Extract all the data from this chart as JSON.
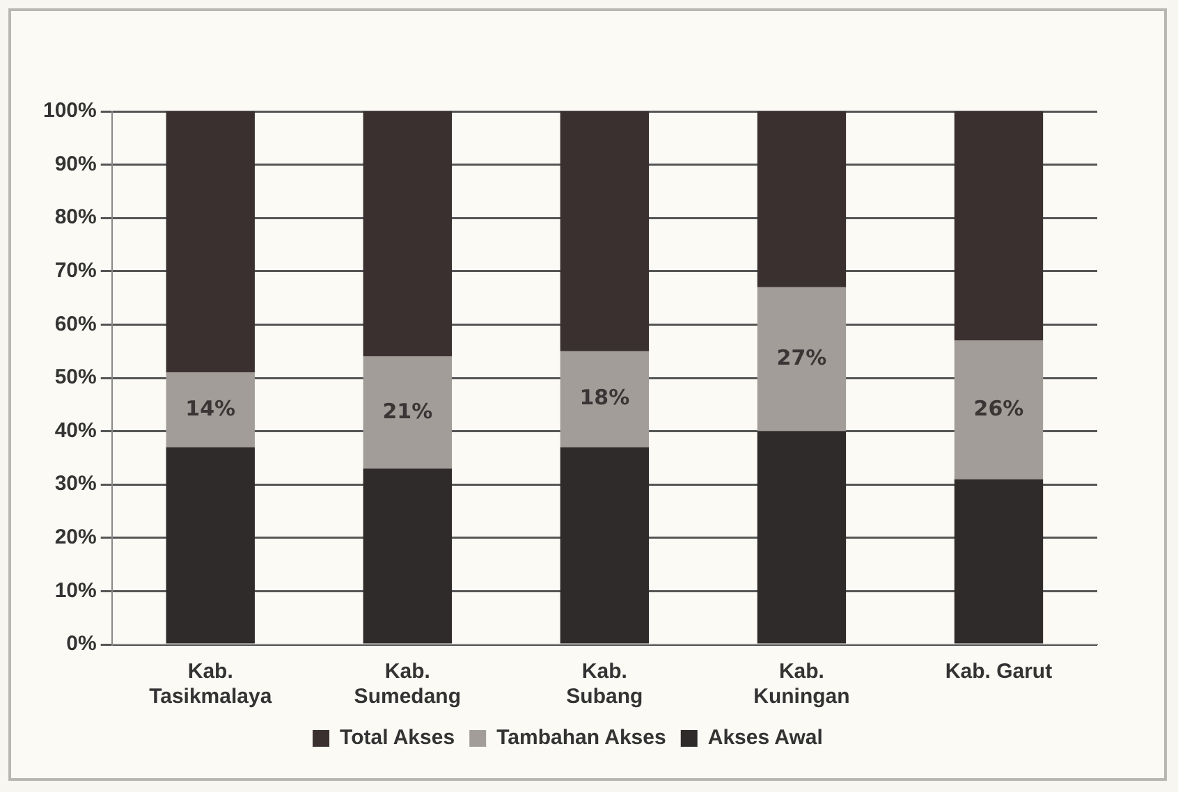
{
  "chart_data": {
    "type": "bar",
    "stacked": true,
    "categories": [
      "Kab. Tasikmalaya",
      "Kab. Sumedang",
      "Kab. Subang",
      "Kab. Kuningan",
      "Kab. Garut"
    ],
    "series": [
      {
        "name": "Akses Awal",
        "color": "#2f2b2b",
        "values": [
          37,
          33,
          37,
          40,
          31
        ]
      },
      {
        "name": "Tambahan Akses",
        "color": "#a39d99",
        "values": [
          14,
          21,
          18,
          27,
          26
        ],
        "value_labels": [
          "14%",
          "21%",
          "18%",
          "27%",
          "26%"
        ]
      },
      {
        "name": "Total Akses",
        "color": "#3a3030",
        "values": [
          49,
          46,
          45,
          33,
          43
        ]
      }
    ],
    "ylim": [
      0,
      100
    ],
    "yticks": [
      {
        "value": 0,
        "label": "0%"
      },
      {
        "value": 10,
        "label": "10%"
      },
      {
        "value": 20,
        "label": "20%"
      },
      {
        "value": 30,
        "label": "30%"
      },
      {
        "value": 40,
        "label": "40%"
      },
      {
        "value": 50,
        "label": "50%"
      },
      {
        "value": 60,
        "label": "60%"
      },
      {
        "value": 70,
        "label": "70%"
      },
      {
        "value": 80,
        "label": "80%"
      },
      {
        "value": 90,
        "label": "90%"
      },
      {
        "value": 100,
        "label": "100%"
      }
    ],
    "grid": "y",
    "legend": "bottom"
  }
}
